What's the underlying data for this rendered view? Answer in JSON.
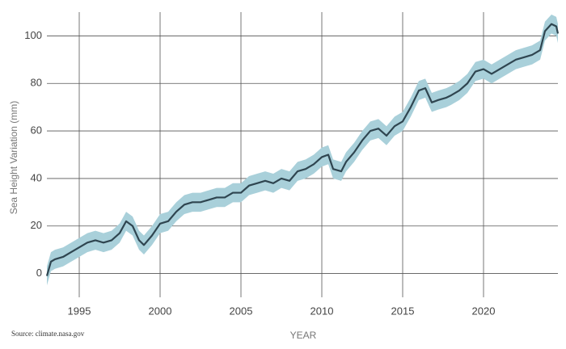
{
  "chart_data": {
    "type": "line",
    "y_label": "Sea Height Variation (mm)",
    "x_label": "YEAR",
    "source": "Source: climate.nasa.gov",
    "x": [
      1993.0,
      1993.25,
      1993.5,
      1994.0,
      1994.5,
      1995.0,
      1995.5,
      1996.0,
      1996.5,
      1997.0,
      1997.5,
      1997.9,
      1998.3,
      1998.7,
      1999.0,
      1999.5,
      2000.0,
      2000.5,
      2001.0,
      2001.5,
      2002.0,
      2002.5,
      2003.0,
      2003.5,
      2004.0,
      2004.5,
      2005.0,
      2005.5,
      2006.0,
      2006.5,
      2007.0,
      2007.5,
      2008.0,
      2008.5,
      2009.0,
      2009.5,
      2010.0,
      2010.4,
      2010.7,
      2011.2,
      2011.5,
      2012.0,
      2012.5,
      2013.0,
      2013.5,
      2014.0,
      2014.5,
      2015.0,
      2015.5,
      2016.0,
      2016.4,
      2016.8,
      2017.2,
      2017.7,
      2018.0,
      2018.5,
      2019.0,
      2019.5,
      2020.0,
      2020.5,
      2021.0,
      2021.5,
      2022.0,
      2022.5,
      2023.0,
      2023.5,
      2023.8,
      2024.2,
      2024.5,
      2024.6
    ],
    "series": [
      {
        "color": "#2f4550",
        "band_color": "#a9d0da",
        "error": 4,
        "values": [
          -1,
          5,
          6,
          7,
          9,
          11,
          13,
          14,
          13,
          14,
          17,
          22,
          20,
          14,
          12,
          16,
          21,
          22,
          26,
          29,
          30,
          30,
          31,
          32,
          32,
          34,
          34,
          37,
          38,
          39,
          38,
          40,
          39,
          43,
          44,
          46,
          49,
          50,
          44,
          43,
          47,
          51,
          56,
          60,
          61,
          58,
          62,
          64,
          70,
          77,
          78,
          72,
          73,
          74,
          75,
          77,
          80,
          85,
          86,
          84,
          86,
          88,
          90,
          91,
          92,
          94,
          102,
          105,
          104,
          101
        ]
      }
    ],
    "xlim": [
      1993,
      2024.6
    ],
    "ylim": [
      -10,
      110
    ],
    "xticks": [
      1995,
      2000,
      2005,
      2010,
      2015,
      2020
    ],
    "yticks": [
      0,
      20,
      40,
      60,
      80,
      100
    ],
    "grid": true
  }
}
